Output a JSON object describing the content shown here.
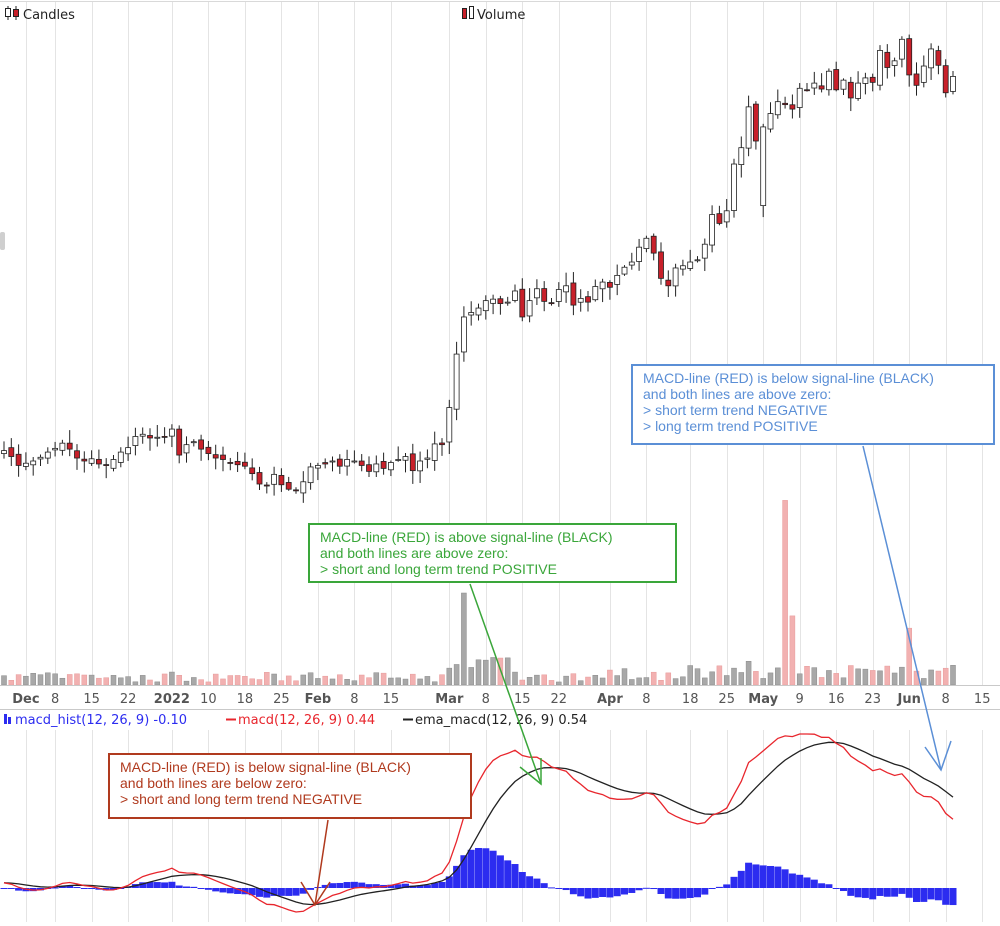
{
  "colors": {
    "up_candle": "#ffffff",
    "down_candle": "#c8202a",
    "candle_outline": "#222222",
    "vol_up": "#a8a8a8",
    "vol_down": "#f2b1b1",
    "macd_hist": "#2c2cf0",
    "macd_line": "#e8262d",
    "signal_line": "#222222",
    "grid": "#e4e4e4",
    "callout_green": "#3aa63a",
    "callout_blue": "#5b8fd6",
    "callout_red": "#b03a1e"
  },
  "legend": {
    "candles": "Candles",
    "volume": "Volume",
    "macd_hist": "macd_hist(12, 26, 9) -0.10",
    "macd": "macd(12, 26, 9) 0.44",
    "ema_macd": "ema_macd(12, 26, 9) 0.54"
  },
  "callouts": {
    "green": [
      "MACD-line (RED) is above signal-line (BLACK)",
      "and both lines are above zero:",
      "> short and long term trend POSITIVE"
    ],
    "blue": [
      "MACD-line (RED) is below signal-line (BLACK)",
      "and both lines are above zero:",
      "> short term trend NEGATIVE",
      "> long term trend POSITIVE"
    ],
    "red": [
      "MACD-line (RED) is below signal-line (BLACK)",
      "and both lines are below zero:",
      "> short and long term trend NEGATIVE"
    ]
  },
  "chart_data": {
    "type": "candlestick",
    "x_ticks": [
      {
        "label": "Dec",
        "bold": true,
        "index": 3
      },
      {
        "label": "8",
        "bold": false,
        "index": 7
      },
      {
        "label": "15",
        "bold": false,
        "index": 12
      },
      {
        "label": "22",
        "bold": false,
        "index": 17
      },
      {
        "label": "2022",
        "bold": true,
        "index": 23
      },
      {
        "label": "10",
        "bold": false,
        "index": 28
      },
      {
        "label": "18",
        "bold": false,
        "index": 33
      },
      {
        "label": "25",
        "bold": false,
        "index": 38
      },
      {
        "label": "Feb",
        "bold": true,
        "index": 43
      },
      {
        "label": "8",
        "bold": false,
        "index": 48
      },
      {
        "label": "15",
        "bold": false,
        "index": 53
      },
      {
        "label": "Mar",
        "bold": true,
        "index": 61
      },
      {
        "label": "8",
        "bold": false,
        "index": 66
      },
      {
        "label": "15",
        "bold": false,
        "index": 71
      },
      {
        "label": "22",
        "bold": false,
        "index": 76
      },
      {
        "label": "Apr",
        "bold": true,
        "index": 83
      },
      {
        "label": "8",
        "bold": false,
        "index": 88
      },
      {
        "label": "18",
        "bold": false,
        "index": 94
      },
      {
        "label": "25",
        "bold": false,
        "index": 99
      },
      {
        "label": "May",
        "bold": true,
        "index": 104
      },
      {
        "label": "9",
        "bold": false,
        "index": 109
      },
      {
        "label": "16",
        "bold": false,
        "index": 114
      },
      {
        "label": "23",
        "bold": false,
        "index": 119
      },
      {
        "label": "Jun",
        "bold": true,
        "index": 124
      },
      {
        "label": "8",
        "bold": false,
        "index": 129
      },
      {
        "label": "15",
        "bold": false,
        "index": 134
      }
    ],
    "closes": [
      100.0,
      99.2,
      98.0,
      98.3,
      98.6,
      99.1,
      99.8,
      100.3,
      101.0,
      100.2,
      99.0,
      98.6,
      98.9,
      98.2,
      98.0,
      98.8,
      99.8,
      100.4,
      101.9,
      102.2,
      101.7,
      101.8,
      101.8,
      102.9,
      99.4,
      100.8,
      101.2,
      100.2,
      99.6,
      99.0,
      98.8,
      98.4,
      98.1,
      97.9,
      96.9,
      95.5,
      95.3,
      96.8,
      95.4,
      94.8,
      94.6,
      95.8,
      97.8,
      98.0,
      98.2,
      98.6,
      97.9,
      98.8,
      98.6,
      98.0,
      97.2,
      98.2,
      97.6,
      98.4,
      98.8,
      99.2,
      97.3,
      98.6,
      99.0,
      100.9,
      100.8,
      105.8,
      113.0,
      118.0,
      118.6,
      119.2,
      120.2,
      120.4,
      119.8,
      120.0,
      121.5,
      118.0,
      120.2,
      121.8,
      120.1,
      119.8,
      121.7,
      122.2,
      119.6,
      120.5,
      120.0,
      122.1,
      122.7,
      122.0,
      123.6,
      124.7,
      125.4,
      127.4,
      128.6,
      126.6,
      123.2,
      122.2,
      124.6,
      124.9,
      125.4,
      125.7,
      127.8,
      131.8,
      130.6,
      132.3,
      138.6,
      140.8,
      146.3,
      141.7,
      143.6,
      145.4,
      147.0,
      146.6,
      146.0,
      148.8,
      148.6,
      149.5,
      148.7,
      151.1,
      148.6,
      149.9,
      147.5,
      149.5,
      150.2,
      149.6,
      153.9,
      151.6,
      152.5,
      155.4,
      150.6,
      149.2,
      151.8,
      154.1,
      151.9,
      148.2,
      150.4
    ]
  }
}
